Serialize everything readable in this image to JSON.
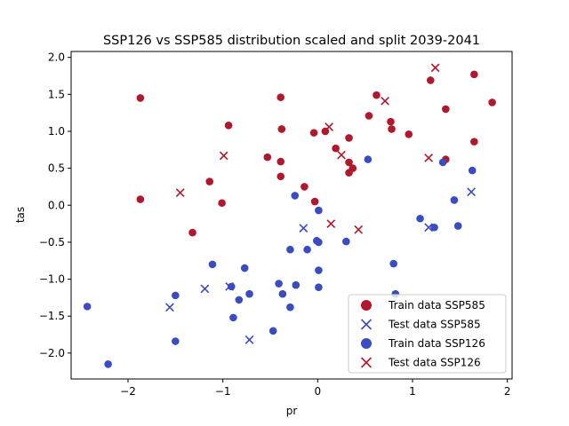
{
  "chart_data": {
    "type": "scatter",
    "title": "SSP126 vs SSP585 distribution scaled and split 2039-2041",
    "xlabel": "pr",
    "ylabel": "tas",
    "xlim": [
      -2.6,
      2.05
    ],
    "ylim": [
      -2.35,
      2.08
    ],
    "xticks": [
      -2,
      -1,
      0,
      1,
      2
    ],
    "xtick_labels": [
      "−2",
      "−1",
      "0",
      "1",
      "2"
    ],
    "yticks": [
      -2.0,
      -1.5,
      -1.0,
      -0.5,
      0.0,
      0.5,
      1.0,
      1.5,
      2.0
    ],
    "ytick_labels": [
      "−2.0",
      "−1.5",
      "−1.0",
      "−0.5",
      "0.0",
      "0.5",
      "1.0",
      "1.5",
      "2.0"
    ],
    "grid": false,
    "legend_position": "lower-right",
    "series": [
      {
        "name": "Train data SSP585",
        "marker": "circle",
        "color": "#b2182b",
        "points": [
          [
            -1.87,
            1.45
          ],
          [
            -1.87,
            0.08
          ],
          [
            -1.32,
            -0.37
          ],
          [
            -1.14,
            0.32
          ],
          [
            -1.01,
            0.03
          ],
          [
            -0.94,
            1.08
          ],
          [
            -0.53,
            0.65
          ],
          [
            -0.39,
            1.46
          ],
          [
            -0.38,
            1.03
          ],
          [
            -0.39,
            0.59
          ],
          [
            -0.39,
            0.39
          ],
          [
            -0.14,
            0.25
          ],
          [
            -0.04,
            0.98
          ],
          [
            -0.03,
            0.05
          ],
          [
            0.08,
            1.0
          ],
          [
            0.19,
            0.77
          ],
          [
            0.33,
            0.91
          ],
          [
            0.33,
            0.58
          ],
          [
            0.33,
            0.44
          ],
          [
            0.37,
            0.5
          ],
          [
            0.54,
            1.21
          ],
          [
            0.62,
            1.49
          ],
          [
            0.77,
            1.13
          ],
          [
            0.78,
            1.03
          ],
          [
            0.96,
            0.96
          ],
          [
            1.19,
            1.69
          ],
          [
            1.35,
            1.3
          ],
          [
            1.35,
            0.62
          ],
          [
            1.65,
            1.77
          ],
          [
            1.65,
            0.86
          ],
          [
            1.84,
            1.39
          ]
        ]
      },
      {
        "name": "Test data SSP585",
        "marker": "x",
        "color": "#3b4cc0",
        "points": [
          [
            -1.56,
            -1.38
          ],
          [
            -1.19,
            -1.13
          ],
          [
            -0.93,
            -1.1
          ],
          [
            -0.72,
            -1.82
          ],
          [
            -0.15,
            -0.31
          ],
          [
            1.17,
            -0.3
          ],
          [
            1.62,
            0.18
          ]
        ]
      },
      {
        "name": "Train data SSP126",
        "marker": "circle",
        "color": "#3b4cc0",
        "points": [
          [
            -2.43,
            -1.37
          ],
          [
            -2.21,
            -2.15
          ],
          [
            -1.5,
            -1.22
          ],
          [
            -1.5,
            -1.84
          ],
          [
            -1.11,
            -0.8
          ],
          [
            -0.91,
            -1.1
          ],
          [
            -0.89,
            -1.52
          ],
          [
            -0.83,
            -1.28
          ],
          [
            -0.77,
            -0.85
          ],
          [
            -0.72,
            -1.2
          ],
          [
            -0.47,
            -1.7
          ],
          [
            -0.41,
            -1.06
          ],
          [
            -0.37,
            -1.2
          ],
          [
            -0.29,
            -1.38
          ],
          [
            -0.29,
            -0.6
          ],
          [
            -0.24,
            0.13
          ],
          [
            -0.23,
            -1.08
          ],
          [
            -0.11,
            -0.6
          ],
          [
            -0.01,
            -0.48
          ],
          [
            0.01,
            -0.07
          ],
          [
            0.01,
            -0.88
          ],
          [
            0.01,
            -1.11
          ],
          [
            0.01,
            -0.5
          ],
          [
            0.3,
            -0.49
          ],
          [
            0.53,
            0.62
          ],
          [
            0.8,
            -0.79
          ],
          [
            0.82,
            -1.2
          ],
          [
            1.08,
            -0.18
          ],
          [
            1.23,
            -0.3
          ],
          [
            1.32,
            0.58
          ],
          [
            1.44,
            0.07
          ],
          [
            1.48,
            -0.28
          ],
          [
            1.63,
            0.47
          ]
        ]
      },
      {
        "name": "Test data SSP126",
        "marker": "x",
        "color": "#b2182b",
        "points": [
          [
            -1.45,
            0.17
          ],
          [
            -0.99,
            0.67
          ],
          [
            0.12,
            1.06
          ],
          [
            0.14,
            -0.25
          ],
          [
            0.25,
            0.68
          ],
          [
            0.43,
            -0.33
          ],
          [
            0.71,
            1.41
          ],
          [
            1.17,
            0.64
          ],
          [
            1.24,
            1.86
          ]
        ]
      }
    ]
  }
}
